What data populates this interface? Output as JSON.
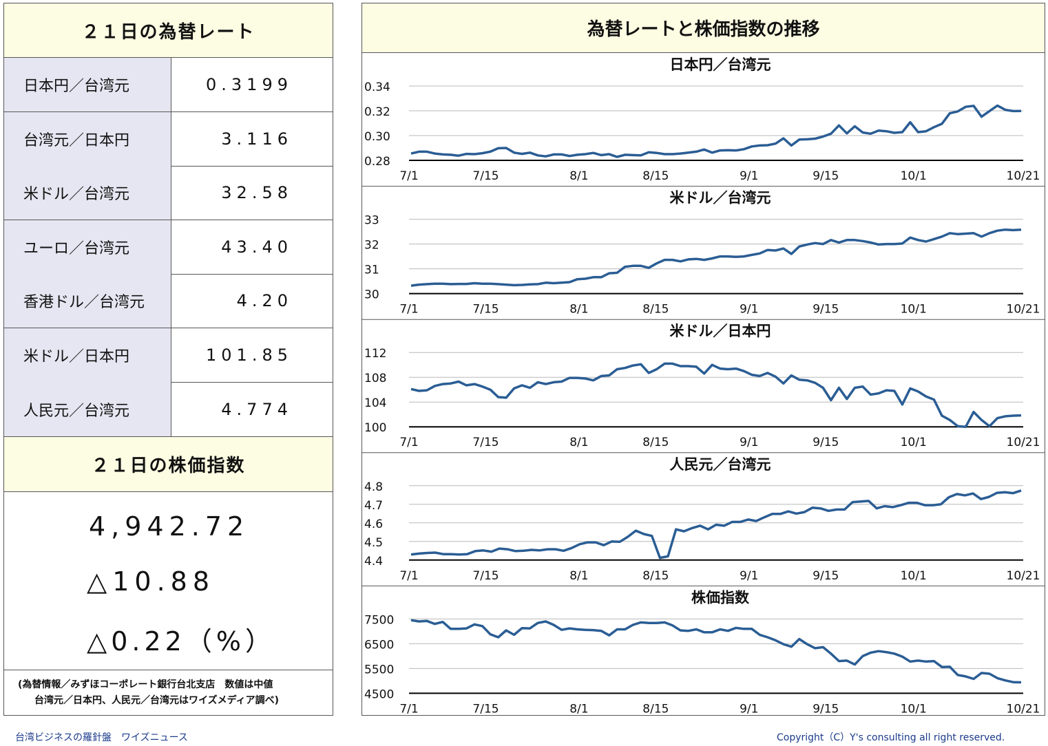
{
  "left_panel": {
    "rates_title": "２１日の為替レート",
    "rates": [
      {
        "label": "日本円／台湾元",
        "value": "0.3199"
      },
      {
        "label": "台湾元／日本円",
        "value": "3.116"
      },
      {
        "label": "米ドル／台湾元",
        "value": "32.58"
      },
      {
        "label": "ユーロ／台湾元",
        "value": "43.40"
      },
      {
        "label": "香港ドル／台湾元",
        "value": "4.20"
      },
      {
        "label": "米ドル／日本円",
        "value": "101.85"
      },
      {
        "label": "人民元／台湾元",
        "value": "4.774"
      }
    ],
    "stock_title": "２１日の株価指数",
    "stock_value": "4,942.72",
    "stock_change": "△10.88",
    "stock_change_pct": "△0.22（%）",
    "note_line1": "(為替情報／みずほコーポレート銀行台北支店　数値は中値",
    "note_line2": "台湾元／日本円、人民元／台湾元はワイズメディア調べ)"
  },
  "right_panel": {
    "title": "為替レートと株価指数の推移"
  },
  "footer": {
    "left": "台湾ビジネスの羅針盤　ワイズニュース",
    "right": "Copyright（C）Y's consulting all right reserved."
  },
  "colors": {
    "line": "#2a5d94",
    "header_bg": "#fdfde3",
    "label_bg": "#e6e6f2",
    "footer_text": "#1a3a8a"
  },
  "chart_data": [
    {
      "type": "line",
      "title": "日本円／台湾元",
      "x_tick_labels": [
        "7/1",
        "7/15",
        "8/1",
        "8/15",
        "9/1",
        "9/15",
        "10/1",
        "10/21"
      ],
      "y_tick_labels": [
        "0.34",
        "0.32",
        "0.30",
        "0.28"
      ],
      "ylim": [
        0.28,
        0.34
      ],
      "grid": true,
      "series": [
        {
          "values": [
            0.2855,
            0.287,
            0.287,
            0.2855,
            0.2848,
            0.2845,
            0.2838,
            0.2852,
            0.285,
            0.2858,
            0.287,
            0.2898,
            0.29,
            0.2862,
            0.2852,
            0.2862,
            0.284,
            0.2832,
            0.2848,
            0.2848,
            0.2835,
            0.2845,
            0.285,
            0.286,
            0.2842,
            0.285,
            0.2828,
            0.2845,
            0.2842,
            0.284,
            0.2865,
            0.286,
            0.285,
            0.285,
            0.2855,
            0.2862,
            0.287,
            0.2888,
            0.2862,
            0.288,
            0.2882,
            0.288,
            0.289,
            0.2912,
            0.292,
            0.2922,
            0.2935,
            0.2978,
            0.292,
            0.2968,
            0.297,
            0.2975,
            0.2992,
            0.3015,
            0.3082,
            0.3018,
            0.3075,
            0.3025,
            0.3015,
            0.304,
            0.3035,
            0.3022,
            0.3028,
            0.3108,
            0.3028,
            0.3035,
            0.3068,
            0.3095,
            0.318,
            0.3195,
            0.3232,
            0.324,
            0.3152,
            0.3198,
            0.3242,
            0.3208,
            0.3198,
            0.3199
          ]
        }
      ]
    },
    {
      "type": "line",
      "title": "米ドル／台湾元",
      "x_tick_labels": [
        "7/1",
        "7/15",
        "8/1",
        "8/15",
        "9/1",
        "9/15",
        "10/1",
        "10/21"
      ],
      "y_tick_labels": [
        "33",
        "32",
        "31",
        "30"
      ],
      "ylim": [
        30,
        33
      ],
      "grid": true,
      "series": [
        {
          "values": [
            30.32,
            30.36,
            30.38,
            30.4,
            30.4,
            30.38,
            30.39,
            30.39,
            30.42,
            30.4,
            30.4,
            30.38,
            30.36,
            30.34,
            30.35,
            30.37,
            30.38,
            30.44,
            30.42,
            30.44,
            30.46,
            30.58,
            30.6,
            30.66,
            30.66,
            30.82,
            30.84,
            31.08,
            31.12,
            31.12,
            31.04,
            31.22,
            31.36,
            31.36,
            31.3,
            31.38,
            31.4,
            31.36,
            31.42,
            31.5,
            31.5,
            31.48,
            31.5,
            31.56,
            31.62,
            31.76,
            31.74,
            31.82,
            31.6,
            31.9,
            31.98,
            32.04,
            32.0,
            32.16,
            32.06,
            32.16,
            32.16,
            32.12,
            32.06,
            31.98,
            32.0,
            32.0,
            32.02,
            32.26,
            32.16,
            32.1,
            32.2,
            32.3,
            32.44,
            32.4,
            32.42,
            32.44,
            32.3,
            32.44,
            32.54,
            32.58,
            32.56,
            32.58
          ]
        }
      ]
    },
    {
      "type": "line",
      "title": "米ドル／日本円",
      "x_tick_labels": [
        "7/1",
        "7/15",
        "8/1",
        "8/15",
        "9/1",
        "9/15",
        "10/1",
        "10/21"
      ],
      "y_tick_labels": [
        "112",
        "108",
        "104",
        "100"
      ],
      "ylim": [
        100,
        112
      ],
      "grid": true,
      "series": [
        {
          "values": [
            106.1,
            105.8,
            105.9,
            106.6,
            106.9,
            107.0,
            107.3,
            106.7,
            106.9,
            106.5,
            106.0,
            104.8,
            104.7,
            106.2,
            106.7,
            106.3,
            107.2,
            106.9,
            107.2,
            107.3,
            107.9,
            107.9,
            107.8,
            107.5,
            108.2,
            108.3,
            109.3,
            109.5,
            109.9,
            110.1,
            108.7,
            109.3,
            110.2,
            110.2,
            109.8,
            109.8,
            109.7,
            108.6,
            110.0,
            109.4,
            109.3,
            109.4,
            109.0,
            108.4,
            108.2,
            108.7,
            108.1,
            107.0,
            108.3,
            107.6,
            107.5,
            107.1,
            106.3,
            104.3,
            106.3,
            104.5,
            106.3,
            106.5,
            105.2,
            105.4,
            105.9,
            105.8,
            103.6,
            106.2,
            105.7,
            104.9,
            104.4,
            101.8,
            101.1,
            100.1,
            100.0,
            102.4,
            101.1,
            100.1,
            101.4,
            101.7,
            101.8,
            101.85
          ]
        }
      ]
    },
    {
      "type": "line",
      "title": "人民元／台湾元",
      "x_tick_labels": [
        "7/1",
        "7/15",
        "8/1",
        "8/15",
        "9/1",
        "9/15",
        "10/1",
        "10/21"
      ],
      "y_tick_labels": [
        "4.8",
        "4.7",
        "4.6",
        "4.5",
        "4.4"
      ],
      "ylim": [
        4.4,
        4.8
      ],
      "grid": true,
      "series": [
        {
          "values": [
            4.43,
            4.435,
            4.438,
            4.44,
            4.432,
            4.432,
            4.43,
            4.432,
            4.448,
            4.452,
            4.445,
            4.462,
            4.458,
            4.448,
            4.45,
            4.455,
            4.452,
            4.458,
            4.458,
            4.45,
            4.465,
            4.485,
            4.495,
            4.495,
            4.48,
            4.5,
            4.498,
            4.525,
            4.558,
            4.54,
            4.53,
            4.412,
            4.42,
            4.565,
            4.555,
            4.572,
            4.585,
            4.565,
            4.59,
            4.585,
            4.605,
            4.605,
            4.618,
            4.61,
            4.63,
            4.648,
            4.648,
            4.662,
            4.65,
            4.658,
            4.682,
            4.678,
            4.665,
            4.672,
            4.672,
            4.712,
            4.715,
            4.718,
            4.678,
            4.69,
            4.685,
            4.695,
            4.708,
            4.708,
            4.695,
            4.695,
            4.7,
            4.738,
            4.755,
            4.748,
            4.758,
            4.728,
            4.74,
            4.762,
            4.765,
            4.76,
            4.774
          ]
        }
      ]
    },
    {
      "type": "line",
      "title": "株価指数",
      "x_tick_labels": [
        "7/1",
        "7/15",
        "8/1",
        "8/15",
        "9/1",
        "9/15",
        "10/1",
        "10/21"
      ],
      "y_tick_labels": [
        "7500",
        "6500",
        "5500",
        "4500"
      ],
      "ylim": [
        4500,
        7500
      ],
      "grid": true,
      "series": [
        {
          "values": [
            7450,
            7400,
            7420,
            7300,
            7380,
            7100,
            7100,
            7120,
            7280,
            7210,
            6880,
            6760,
            7040,
            6860,
            7130,
            7120,
            7340,
            7400,
            7260,
            7060,
            7120,
            7080,
            7060,
            7050,
            7020,
            6840,
            7080,
            7080,
            7260,
            7360,
            7340,
            7340,
            7360,
            7240,
            7040,
            7020,
            7080,
            6960,
            6960,
            7080,
            7020,
            7140,
            7100,
            7100,
            6860,
            6760,
            6640,
            6480,
            6380,
            6690,
            6480,
            6320,
            6360,
            6100,
            5800,
            5820,
            5660,
            6000,
            6140,
            6200,
            6160,
            6100,
            5980,
            5780,
            5820,
            5780,
            5800,
            5560,
            5570,
            5240,
            5180,
            5080,
            5320,
            5290,
            5110,
            5020,
            4950,
            4943
          ]
        }
      ]
    }
  ]
}
